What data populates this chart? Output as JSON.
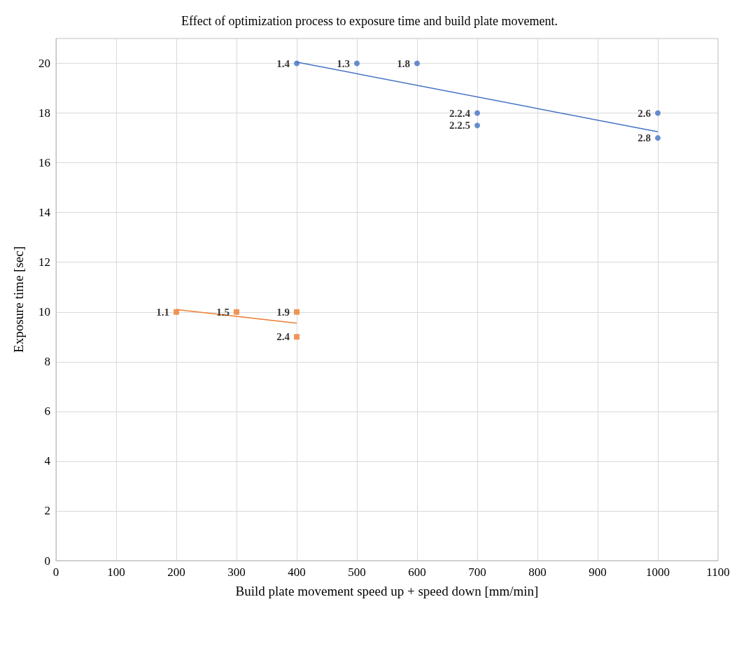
{
  "chart_data": {
    "type": "scatter",
    "title": "Effect of optimization process to exposure time and build plate movement.",
    "xlabel": "Build plate movement speed up + speed down [mm/min]",
    "ylabel": "Exposure time [sec]",
    "xlim": [
      0,
      1100
    ],
    "xticks": [
      0,
      100,
      200,
      300,
      400,
      500,
      600,
      700,
      800,
      900,
      1000,
      1100
    ],
    "ylim": [
      0,
      21
    ],
    "yticks": [
      0,
      2,
      4,
      6,
      8,
      10,
      12,
      14,
      16,
      18,
      20
    ],
    "grid": true,
    "series": [
      {
        "color": "#4472c4",
        "marker": "circle",
        "x": [
          400,
          500,
          600,
          700,
          700,
          1000,
          1000
        ],
        "values": [
          20,
          20,
          20,
          18,
          17.5,
          18,
          17
        ]
      },
      {
        "color": "#ed7d31",
        "marker": "square",
        "x": [
          200,
          300,
          400,
          400
        ],
        "values": [
          10,
          10,
          10,
          9
        ]
      },
      {
        "type": "line",
        "color": "#4472c4",
        "marker": "none",
        "x": [
          400,
          1000
        ],
        "values": [
          20.05,
          17.25
        ]
      },
      {
        "type": "line",
        "color": "#ed7d31",
        "marker": "none",
        "x": [
          200,
          400
        ],
        "values": [
          10.1,
          9.55
        ]
      }
    ],
    "annotations": [
      {
        "text": "1.4",
        "x": 400,
        "y": 20
      },
      {
        "text": "1.3",
        "x": 500,
        "y": 20
      },
      {
        "text": "1.8",
        "x": 600,
        "y": 20
      },
      {
        "text": "2.2.4",
        "x": 700,
        "y": 18
      },
      {
        "text": "2.2.5",
        "x": 700,
        "y": 17.5
      },
      {
        "text": "2.6",
        "x": 1000,
        "y": 18
      },
      {
        "text": "2.8",
        "x": 1000,
        "y": 17
      },
      {
        "text": "1.1",
        "x": 200,
        "y": 10
      },
      {
        "text": "1.5",
        "x": 300,
        "y": 10
      },
      {
        "text": "1.9",
        "x": 400,
        "y": 10
      },
      {
        "text": "2.4",
        "x": 400,
        "y": 9
      }
    ]
  }
}
